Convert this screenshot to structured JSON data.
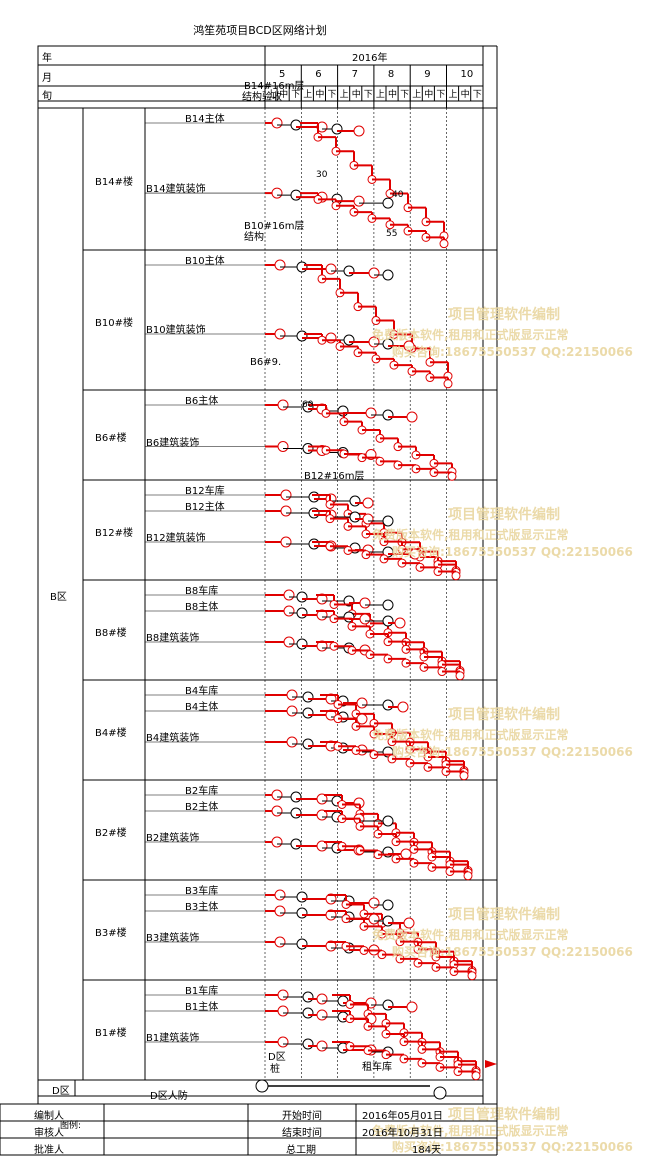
{
  "title": "鸿笙苑项目BCD区网络计划",
  "header": {
    "year_label": "年",
    "month_label": "月",
    "period_label": "旬",
    "year_value": "2016年",
    "months": [
      "5",
      "6",
      "7",
      "8",
      "9",
      "10"
    ],
    "periods": [
      "上",
      "中",
      "下",
      "上",
      "中",
      "下",
      "上",
      "中",
      "下",
      "上",
      "中",
      "下",
      "上",
      "中",
      "下",
      "上",
      "中",
      "下"
    ]
  },
  "zone": {
    "b_zone": "B区",
    "d_zone": "D区"
  },
  "buildings": [
    {
      "name": "B14#楼",
      "tasks": [
        "B14主体",
        "B14建筑装饰"
      ]
    },
    {
      "name": "B10#楼",
      "tasks": [
        "B10主体",
        "B10建筑装饰"
      ]
    },
    {
      "name": "B6#楼",
      "tasks": [
        "B6主体",
        "B6建筑装饰"
      ]
    },
    {
      "name": "B12#楼",
      "tasks": [
        "B12车库",
        "B12主体",
        "B12建筑装饰"
      ]
    },
    {
      "name": "B8#楼",
      "tasks": [
        "B8车库",
        "B8主体",
        "B8建筑装饰"
      ]
    },
    {
      "name": "B4#楼",
      "tasks": [
        "B4车库",
        "B4主体",
        "B4建筑装饰"
      ]
    },
    {
      "name": "B2#楼",
      "tasks": [
        "B2车库",
        "B2主体",
        "B2建筑装饰"
      ]
    },
    {
      "name": "B3#楼",
      "tasks": [
        "B3车库",
        "B3主体",
        "B3建筑装饰"
      ]
    },
    {
      "name": "B1#楼",
      "tasks": [
        "B1车库",
        "B1主体",
        "B1建筑装饰"
      ]
    }
  ],
  "d_task": "D区人防",
  "labels": {
    "b14_top": "B14#16m层",
    "b14_top2": "结构验收",
    "b10_top": "B10#16m层",
    "b10_top2": "结构",
    "b6_top": "B6#9.",
    "b12_top": "B12#16m层",
    "d_top": "D区",
    "d_top2": "桩",
    "d_garage": "租车库",
    "dur_30": "30",
    "dur_40": "40",
    "dur_55": "55",
    "dur_60": "60"
  },
  "footer": {
    "compiled_by_label": "编制人",
    "reviewed_by_label": "审核人",
    "approved_by_label": "批准人",
    "legend_label": "图例:",
    "start_label": "开始时间",
    "start_value": "2016年05月01日",
    "end_label": "结束时间",
    "end_value": "2016年10月31日",
    "duration_label": "总工期",
    "duration_value": "184天"
  },
  "watermarks": [
    "项目管理软件编制",
    "免费版本软件,租用和正式版显示正常",
    "购买咨询:18675550537 QQ:22150066"
  ],
  "colors": {
    "critical": "#e00000",
    "grid": "#000000",
    "watermark": "#e9d7a0"
  }
}
